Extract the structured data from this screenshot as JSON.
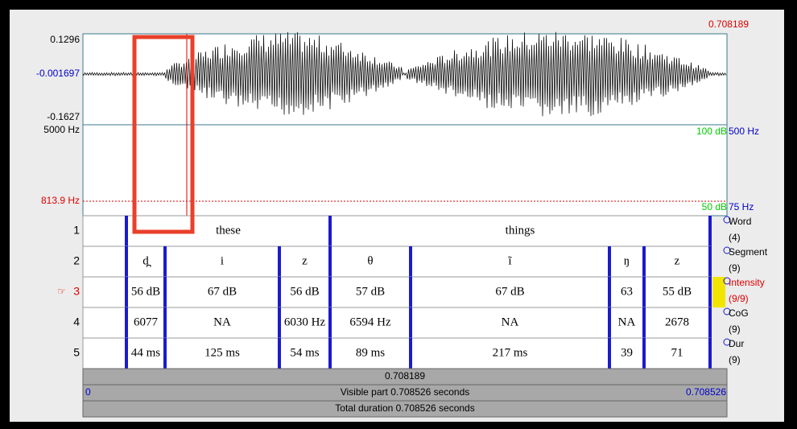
{
  "cursor_time": "0.708189",
  "waveform": {
    "max": "0.1296",
    "mid": "-0.001697",
    "min": "-0.1627"
  },
  "spectrogram": {
    "top": "5000 Hz",
    "cursor": "813.9 Hz",
    "intensity_top": "100 dB",
    "pitch_top": "500 Hz",
    "intensity_bottom": "50 dB",
    "pitch_bottom": "75 Hz"
  },
  "tiers": [
    {
      "number": "1",
      "name": "Word",
      "count": "(4)",
      "intervals": [
        "these",
        "things"
      ]
    },
    {
      "number": "2",
      "name": "Segment",
      "count": "(9)",
      "intervals": [
        "d̪",
        "i",
        "z",
        "θ",
        "ĩ",
        "ŋ",
        "z"
      ]
    },
    {
      "number": "3",
      "marker": "☞",
      "name": "Intensity",
      "count": "(9/9)",
      "intervals": [
        "56 dB",
        "67 dB",
        "56 dB",
        "57 dB",
        "67 dB",
        "63",
        "55 dB"
      ]
    },
    {
      "number": "4",
      "name": "CoG",
      "count": "(9)",
      "intervals": [
        "6077",
        "NA",
        "6030 Hz",
        "6594 Hz",
        "NA",
        "NA",
        "2678"
      ]
    },
    {
      "number": "5",
      "name": "Dur",
      "count": "(9)",
      "intervals": [
        "44 ms",
        "125 ms",
        "54 ms",
        "89 ms",
        "217 ms",
        "39",
        "71"
      ]
    }
  ],
  "footer": {
    "selection": "0.708189",
    "visible_start": "0",
    "visible": "Visible part 0.708526 seconds",
    "visible_end": "0.708526",
    "total": "Total duration 0.708526 seconds"
  }
}
